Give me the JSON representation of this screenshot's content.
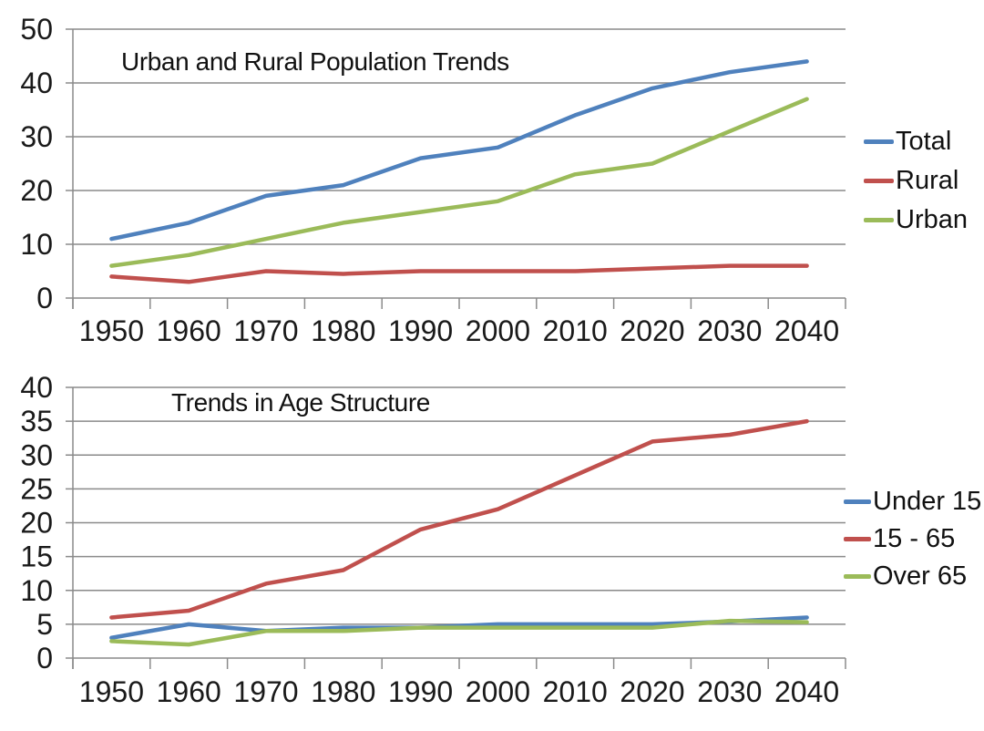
{
  "colors": {
    "blue": "#4F81BD",
    "red": "#C0504D",
    "green": "#9BBB59",
    "grid": "#8A8A8A",
    "text": "#1A1A1A"
  },
  "chart_data": [
    {
      "type": "line",
      "title": "Urban and Rural Population Trends",
      "categories": [
        "1950",
        "1960",
        "1970",
        "1980",
        "1990",
        "2000",
        "2010",
        "2020",
        "2030",
        "2040"
      ],
      "series": [
        {
          "name": "Total",
          "color_key": "blue",
          "values": [
            11,
            14,
            19,
            21,
            26,
            28,
            34,
            39,
            42,
            44
          ]
        },
        {
          "name": "Rural",
          "color_key": "red",
          "values": [
            4,
            3,
            5,
            4.5,
            5,
            5,
            5,
            5.5,
            6,
            6
          ]
        },
        {
          "name": "Urban",
          "color_key": "green",
          "values": [
            6,
            8,
            11,
            14,
            16,
            18,
            23,
            25,
            31,
            37
          ]
        }
      ],
      "ylim": [
        0,
        50
      ],
      "ytick_step": 10,
      "grid": true,
      "legend_position": "right"
    },
    {
      "type": "line",
      "title": "Trends in Age Structure",
      "categories": [
        "1950",
        "1960",
        "1970",
        "1980",
        "1990",
        "2000",
        "2010",
        "2020",
        "2030",
        "2040"
      ],
      "series": [
        {
          "name": "Under 15",
          "color_key": "blue",
          "values": [
            3,
            5,
            4,
            4.5,
            4.5,
            5,
            5,
            5,
            5.4,
            6
          ]
        },
        {
          "name": "15 - 65",
          "color_key": "red",
          "values": [
            6,
            7,
            11,
            13,
            19,
            22,
            27,
            32,
            33,
            35
          ]
        },
        {
          "name": "Over 65",
          "color_key": "green",
          "values": [
            2.5,
            2,
            4,
            4,
            4.5,
            4.5,
            4.5,
            4.5,
            5.5,
            5.3
          ]
        }
      ],
      "ylim": [
        0,
        40
      ],
      "ytick_step": 5,
      "grid": true,
      "legend_position": "right"
    }
  ]
}
